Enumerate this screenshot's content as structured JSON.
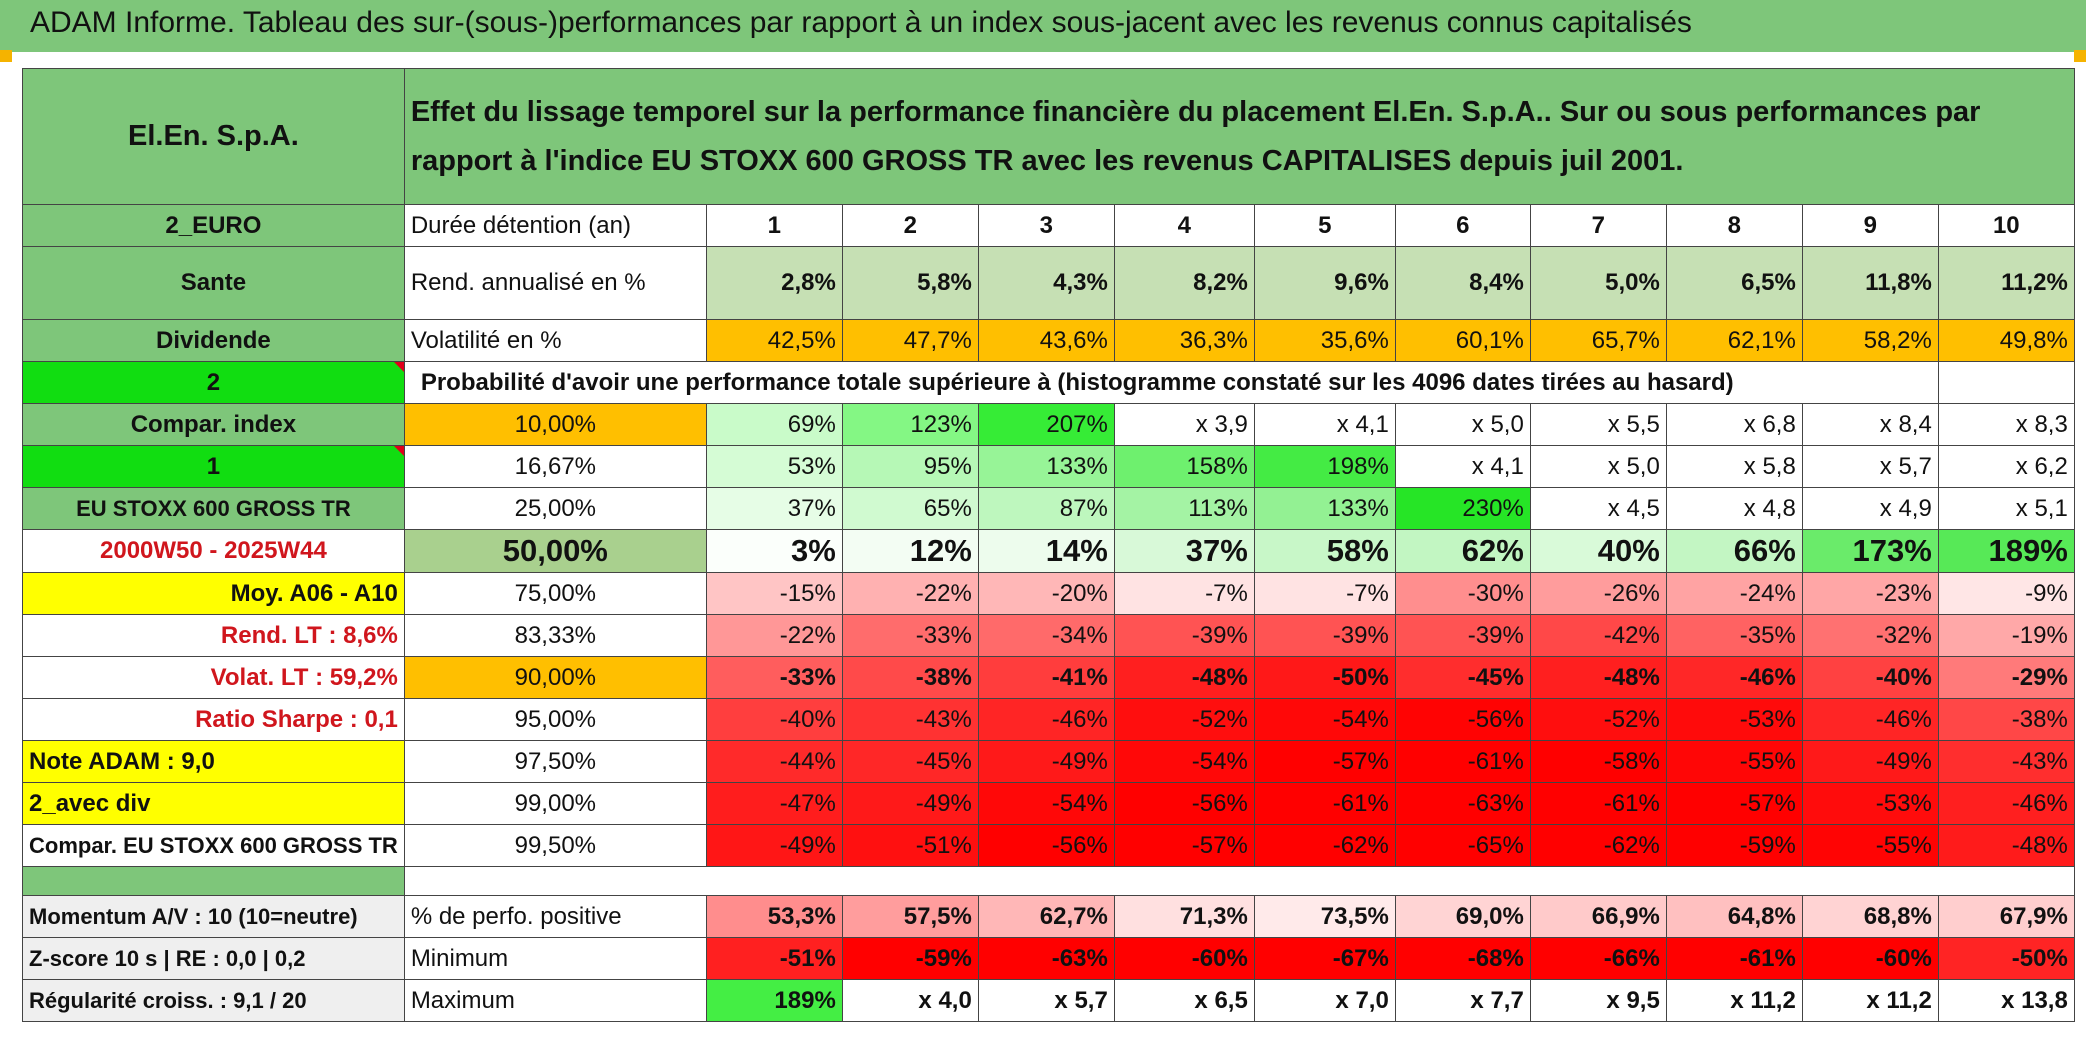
{
  "title": "ADAM Informe. Tableau des sur-(sous-)performances par rapport à un index sous-jacent avec les revenus connus capitalisés",
  "header": {
    "name": "El.En. S.p.A.",
    "description": "Effet du lissage temporel sur la performance financière du placement El.En. S.p.A.. Sur ou sous performances par rapport à l'indice EU STOXX 600 GROSS TR avec les revenus CAPITALISES depuis juil 2001."
  },
  "colors": {
    "bright_green": "#11dd11",
    "medium_green": "#7ec67a",
    "orange": "#ffbf00",
    "yellow": "#ffff00",
    "label_red": "#d0161d"
  },
  "rows": {
    "duree": {
      "left": "2_EURO",
      "label": "Durée détention (an)",
      "values": [
        "1",
        "2",
        "3",
        "4",
        "5",
        "6",
        "7",
        "8",
        "9",
        "10"
      ]
    },
    "rend": {
      "left": "Sante",
      "label": "Rend. annualisé en %",
      "values": [
        "2,8%",
        "5,8%",
        "4,3%",
        "8,2%",
        "9,6%",
        "8,4%",
        "5,0%",
        "6,5%",
        "11,8%",
        "11,2%"
      ]
    },
    "vol": {
      "left": "Dividende",
      "label": "Volatilité en %",
      "values": [
        "42,5%",
        "47,7%",
        "43,6%",
        "36,3%",
        "35,6%",
        "60,1%",
        "65,7%",
        "62,1%",
        "58,2%",
        "49,8%"
      ]
    },
    "proba": {
      "left": "2",
      "label": "Probabilité d'avoir une performance totale supérieure à (histogramme constaté sur les 4096 dates tirées au hasard)"
    },
    "q10": {
      "left": "Compar. index",
      "pct": "10,00%",
      "values": [
        "69%",
        "123%",
        "207%",
        "x 3,9",
        "x 4,1",
        "x 5,0",
        "x 5,5",
        "x 6,8",
        "x 8,4",
        "x 8,3"
      ]
    },
    "q16": {
      "left": "1",
      "pct": "16,67%",
      "values": [
        "53%",
        "95%",
        "133%",
        "158%",
        "198%",
        "x 4,1",
        "x 5,0",
        "x 5,8",
        "x 5,7",
        "x 6,2"
      ]
    },
    "q25": {
      "left": "EU STOXX 600 GROSS TR",
      "pct": "25,00%",
      "values": [
        "37%",
        "65%",
        "87%",
        "113%",
        "133%",
        "230%",
        "x 4,5",
        "x 4,8",
        "x 4,9",
        "x 5,1"
      ]
    },
    "q50": {
      "left": "2000W50 - 2025W44",
      "pct": "50,00%",
      "values": [
        "3%",
        "12%",
        "14%",
        "37%",
        "58%",
        "62%",
        "40%",
        "66%",
        "173%",
        "189%"
      ]
    },
    "q75": {
      "left": "Moy. A06 - A10",
      "pct": "75,00%",
      "values": [
        "-15%",
        "-22%",
        "-20%",
        "-7%",
        "-7%",
        "-30%",
        "-26%",
        "-24%",
        "-23%",
        "-9%"
      ]
    },
    "q83": {
      "left": "Rend. LT :   8,6%",
      "pct": "83,33%",
      "values": [
        "-22%",
        "-33%",
        "-34%",
        "-39%",
        "-39%",
        "-39%",
        "-42%",
        "-35%",
        "-32%",
        "-19%"
      ]
    },
    "q90": {
      "left": "Volat. LT :   59,2%",
      "pct": "90,00%",
      "values": [
        "-33%",
        "-38%",
        "-41%",
        "-48%",
        "-50%",
        "-45%",
        "-48%",
        "-46%",
        "-40%",
        "-29%"
      ]
    },
    "q95": {
      "left": "Ratio Sharpe :    0,1",
      "pct": "95,00%",
      "values": [
        "-40%",
        "-43%",
        "-46%",
        "-52%",
        "-54%",
        "-56%",
        "-52%",
        "-53%",
        "-46%",
        "-38%"
      ]
    },
    "q975": {
      "left": "Note ADAM : 9,0",
      "pct": "97,50%",
      "values": [
        "-44%",
        "-45%",
        "-49%",
        "-54%",
        "-57%",
        "-61%",
        "-58%",
        "-55%",
        "-49%",
        "-43%"
      ]
    },
    "q99": {
      "left": "2_avec div",
      "pct": "99,00%",
      "values": [
        "-47%",
        "-49%",
        "-54%",
        "-56%",
        "-61%",
        "-63%",
        "-61%",
        "-57%",
        "-53%",
        "-46%"
      ]
    },
    "q995": {
      "left": "Compar. EU STOXX 600 GROSS TR",
      "pct": "99,50%",
      "values": [
        "-49%",
        "-51%",
        "-56%",
        "-57%",
        "-62%",
        "-65%",
        "-62%",
        "-59%",
        "-55%",
        "-48%"
      ]
    },
    "positive": {
      "left": "Momentum A/V : 10 (10=neutre)",
      "label": "% de perfo. positive",
      "values": [
        "53,3%",
        "57,5%",
        "62,7%",
        "71,3%",
        "73,5%",
        "69,0%",
        "66,9%",
        "64,8%",
        "68,8%",
        "67,9%"
      ]
    },
    "minimum": {
      "left": "Z-score 10 s | RE : 0,0 | 0,2",
      "label": "Minimum",
      "values": [
        "-51%",
        "-59%",
        "-63%",
        "-60%",
        "-67%",
        "-68%",
        "-66%",
        "-61%",
        "-60%",
        "-50%"
      ]
    },
    "maximum": {
      "left": "Régularité croiss. : 9,1 / 20",
      "label": "Maximum",
      "values": [
        "189%",
        "x 4,0",
        "x 5,7",
        "x 6,5",
        "x 7,0",
        "x 7,7",
        "x 9,5",
        "x 11,2",
        "x 11,2",
        "x 13,8"
      ]
    }
  }
}
